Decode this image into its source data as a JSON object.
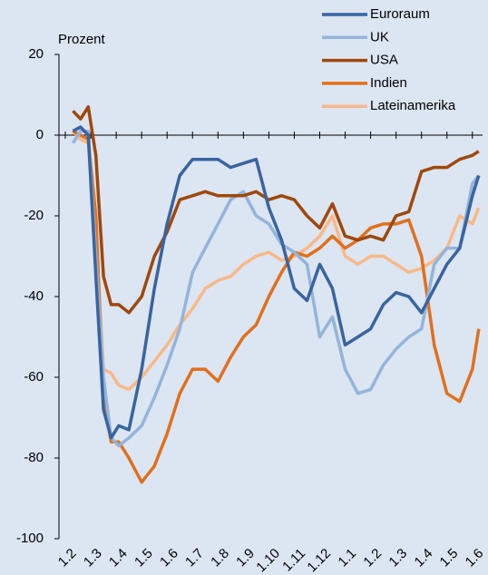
{
  "chart_data": {
    "type": "line",
    "ylabel": "Prozent",
    "x": [
      0.3,
      0.6,
      0.9,
      1.2,
      1.5,
      1.8,
      2.1,
      2.5,
      3,
      3.5,
      4,
      4.5,
      5,
      5.5,
      6,
      6.5,
      7,
      7.5,
      8,
      8.5,
      9,
      9.5,
      10,
      10.5,
      11,
      11.5,
      12,
      12.5,
      13,
      13.5,
      14,
      14.5,
      15,
      15.5,
      16,
      16.25
    ],
    "series": [
      {
        "name": "Euroraum",
        "color": "#3a64a0",
        "values": [
          1,
          2,
          0,
          -35,
          -68,
          -75,
          -72,
          -73,
          -58,
          -38,
          -22,
          -10,
          -6,
          -6,
          -6,
          -8,
          -7,
          -6,
          -18,
          -26,
          -38,
          -41,
          -32,
          -38,
          -52,
          -50,
          -48,
          -42,
          -39,
          -40,
          -44,
          -38,
          -32,
          -28,
          -15,
          -10
        ]
      },
      {
        "name": "UK",
        "color": "#94b4da",
        "values": [
          -2,
          1,
          1,
          -30,
          -60,
          -75,
          -77,
          -75,
          -72,
          -65,
          -57,
          -48,
          -34,
          -28,
          -22,
          -16,
          -14,
          -20,
          -22,
          -27,
          -29,
          -32,
          -50,
          -45,
          -58,
          -64,
          -63,
          -57,
          -53,
          -50,
          -48,
          -32,
          -28,
          -28,
          -12,
          -10
        ]
      },
      {
        "name": "USA",
        "color": "#9e480e",
        "values": [
          6,
          4,
          7,
          -5,
          -35,
          -42,
          -42,
          -44,
          -40,
          -30,
          -24,
          -16,
          -15,
          -14,
          -15,
          -15,
          -15,
          -14,
          -16,
          -15,
          -16,
          -20,
          -23,
          -17,
          -25,
          -26,
          -25,
          -26,
          -20,
          -19,
          -9,
          -8,
          -8,
          -6,
          -5,
          -4
        ]
      },
      {
        "name": "Indien",
        "color": "#e0701e",
        "values": [
          1,
          0,
          -1,
          -20,
          -65,
          -76,
          -76,
          -80,
          -86,
          -82,
          -74,
          -64,
          -58,
          -58,
          -61,
          -55,
          -50,
          -47,
          -40,
          -34,
          -29,
          -30,
          -28,
          -25,
          -28,
          -26,
          -23,
          -22,
          -22,
          -21,
          -30,
          -52,
          -64,
          -66,
          -58,
          -48
        ]
      },
      {
        "name": "Lateinamerika",
        "color": "#f8b888",
        "values": [
          1,
          -1,
          -2,
          -25,
          -58,
          -59,
          -62,
          -63,
          -60,
          -56,
          -52,
          -47,
          -43,
          -38,
          -36,
          -35,
          -32,
          -30,
          -29,
          -31,
          -30,
          -28,
          -25,
          -20,
          -30,
          -32,
          -30,
          -30,
          -32,
          -34,
          -33,
          -31,
          -28,
          -20,
          -22,
          -18
        ]
      }
    ],
    "xlim": [
      -0.25,
      16.4
    ],
    "xticks": [
      {
        "value": 0,
        "label": "1.2"
      },
      {
        "value": 1,
        "label": "1.3"
      },
      {
        "value": 2,
        "label": "1.4"
      },
      {
        "value": 3,
        "label": "1.5"
      },
      {
        "value": 4,
        "label": "1.6"
      },
      {
        "value": 5,
        "label": "1.7"
      },
      {
        "value": 6,
        "label": "1.8"
      },
      {
        "value": 7,
        "label": "1.9"
      },
      {
        "value": 8,
        "label": "1.10"
      },
      {
        "value": 9,
        "label": "1.11"
      },
      {
        "value": 10,
        "label": "1.12"
      },
      {
        "value": 11,
        "label": "1.1"
      },
      {
        "value": 12,
        "label": "1.2"
      },
      {
        "value": 13,
        "label": "1.3"
      },
      {
        "value": 14,
        "label": "1.4"
      },
      {
        "value": 15,
        "label": "1.5"
      },
      {
        "value": 16,
        "label": "1.6"
      }
    ],
    "ylim": [
      -100,
      20
    ],
    "yticks": [
      -100,
      -80,
      -60,
      -40,
      -20,
      0,
      20
    ],
    "legend": "top-right"
  }
}
